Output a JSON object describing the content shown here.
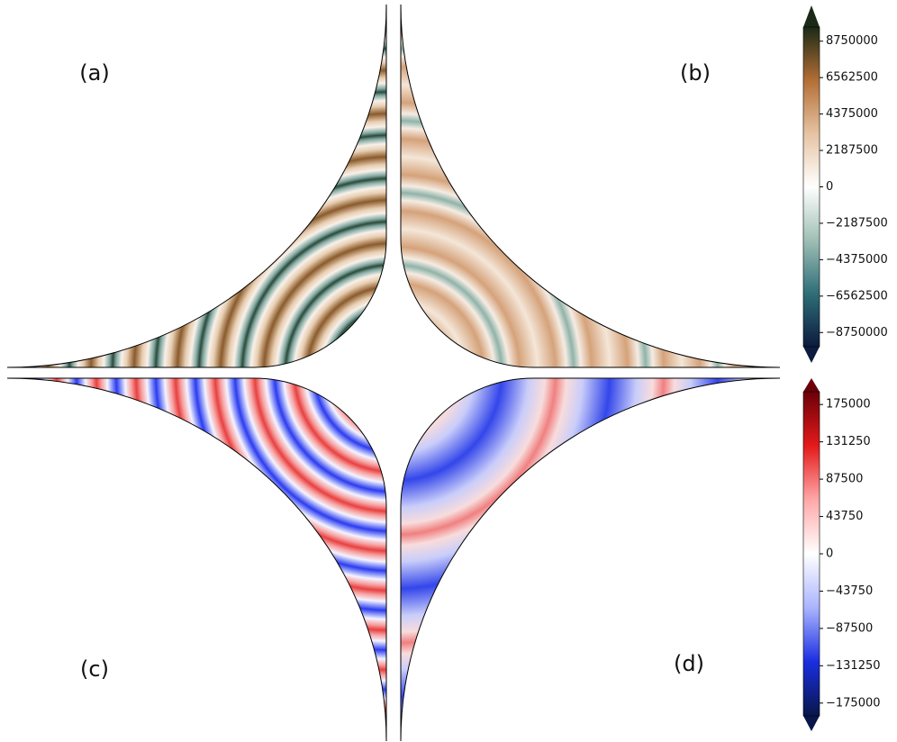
{
  "panels": [
    {
      "label": "(a)"
    },
    {
      "label": "(b)"
    },
    {
      "label": "(c)"
    },
    {
      "label": "(d)"
    }
  ],
  "colorbars": [
    {
      "lim": [
        -9600000,
        9600000
      ],
      "colors": [
        "#0c1b3e",
        "#2f6e78",
        "#9fbfb5",
        "#ffffff",
        "#e6c3a3",
        "#b36e35",
        "#1a2a16"
      ],
      "ticks": [
        {
          "value": -8750000,
          "label": "−8750000"
        },
        {
          "value": -6562500,
          "label": "−6562500"
        },
        {
          "value": -4375000,
          "label": "−4375000"
        },
        {
          "value": -2187500,
          "label": "−2187500"
        },
        0,
        2187500,
        4375000,
        6562500,
        8750000
      ]
    },
    {
      "lim": [
        -190000,
        190000
      ],
      "colors": [
        "#08164a",
        "#1a2ee0",
        "#aab4ff",
        "#ffffff",
        "#ffa8a8",
        "#e41a1a",
        "#6b0008"
      ],
      "ticks": [
        {
          "value": -175000,
          "label": "−175000"
        },
        {
          "value": -131250,
          "label": "−131250"
        },
        {
          "value": -87500,
          "label": "−87500"
        },
        {
          "value": -43750,
          "label": "−43750"
        },
        0,
        43750,
        87500,
        131250,
        175000
      ]
    }
  ]
}
